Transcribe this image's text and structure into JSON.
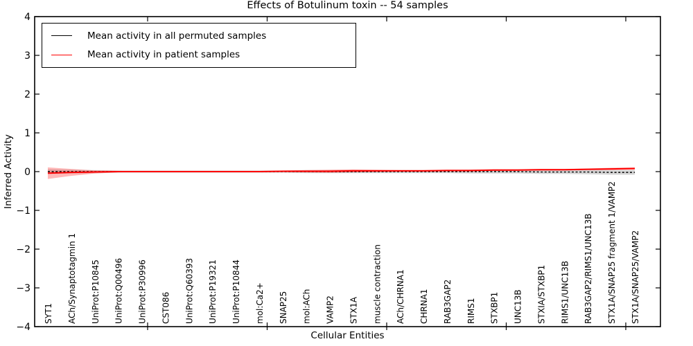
{
  "title": "Effects of Botulinum toxin -- 54 samples",
  "axes": {
    "ylabel": "Inferred Activity",
    "xlabel": "Cellular Entities"
  },
  "legend": {
    "items": [
      {
        "label": "Mean activity in all permuted samples",
        "color": "#000000"
      },
      {
        "label": "Mean activity in patient samples",
        "color": "#ff0000"
      }
    ]
  },
  "chart_data": {
    "type": "line",
    "title": "Effects of Botulinum toxin -- 54 samples",
    "xlabel": "Cellular Entities",
    "ylabel": "Inferred Activity",
    "ylim": [
      -4,
      4
    ],
    "yticks": [
      4,
      3,
      2,
      1,
      0,
      -1,
      -2,
      -3,
      -4
    ],
    "grid": false,
    "legend_position": "upper left",
    "categories": [
      "SYT1",
      "ACh/Synaptotagmin 1",
      "UniProt:P10845",
      "UniProt:Q00496",
      "UniProt:P30996",
      "CST086",
      "UniProt:Q60393",
      "UniProt:P19321",
      "UniProt:P10844",
      "mol:Ca2+",
      "SNAP25",
      "mol:ACh",
      "VAMP2",
      "STX1A",
      "muscle contraction",
      "ACh/CHRNA1",
      "CHRNA1",
      "RAB3GAP2",
      "RIMS1",
      "STXBP1",
      "UNC13B",
      "STXIA/STXBP1",
      "RIMS1/UNC13B",
      "RAB3GAP2/RIMS1/UNC13B",
      "STX1A/SNAP25 fragment 1/VAMP2",
      "STX1A/SNAP25/VAMP2"
    ],
    "series": [
      {
        "name": "Mean activity in all permuted samples",
        "color": "#000000",
        "line_style": "dotted",
        "band_color": "rgba(0,0,0,0.16)",
        "values": [
          0,
          0,
          0,
          0,
          0,
          0,
          0,
          0,
          0,
          0,
          0,
          0,
          0,
          0,
          0,
          0,
          0,
          0,
          0,
          0,
          0,
          -0.01,
          -0.01,
          -0.01,
          -0.02,
          -0.02
        ],
        "band_half_width": [
          0.06,
          0.05,
          0.04,
          0.03,
          0.03,
          0.03,
          0.03,
          0.03,
          0.03,
          0.03,
          0.03,
          0.04,
          0.04,
          0.04,
          0.04,
          0.04,
          0.04,
          0.04,
          0.05,
          0.05,
          0.05,
          0.05,
          0.05,
          0.06,
          0.06,
          0.06
        ]
      },
      {
        "name": "Mean activity in patient samples",
        "color": "#ff0000",
        "line_style": "solid",
        "band_color": "rgba(255,0,0,0.28)",
        "values": [
          -0.04,
          -0.02,
          -0.01,
          0,
          0,
          0,
          0,
          0,
          0,
          0,
          0.01,
          0.01,
          0.01,
          0.02,
          0.02,
          0.02,
          0.02,
          0.03,
          0.03,
          0.04,
          0.04,
          0.05,
          0.05,
          0.06,
          0.07,
          0.08
        ],
        "band_half_width": [
          0.15,
          0.09,
          0.04,
          0.02,
          0.01,
          0.01,
          0.01,
          0.01,
          0.01,
          0.01,
          0.02,
          0.03,
          0.04,
          0.04,
          0.03,
          0.02,
          0.02,
          0.02,
          0.02,
          0.02,
          0.02,
          0.02,
          0.02,
          0.02,
          0.03,
          0.03
        ]
      }
    ]
  }
}
